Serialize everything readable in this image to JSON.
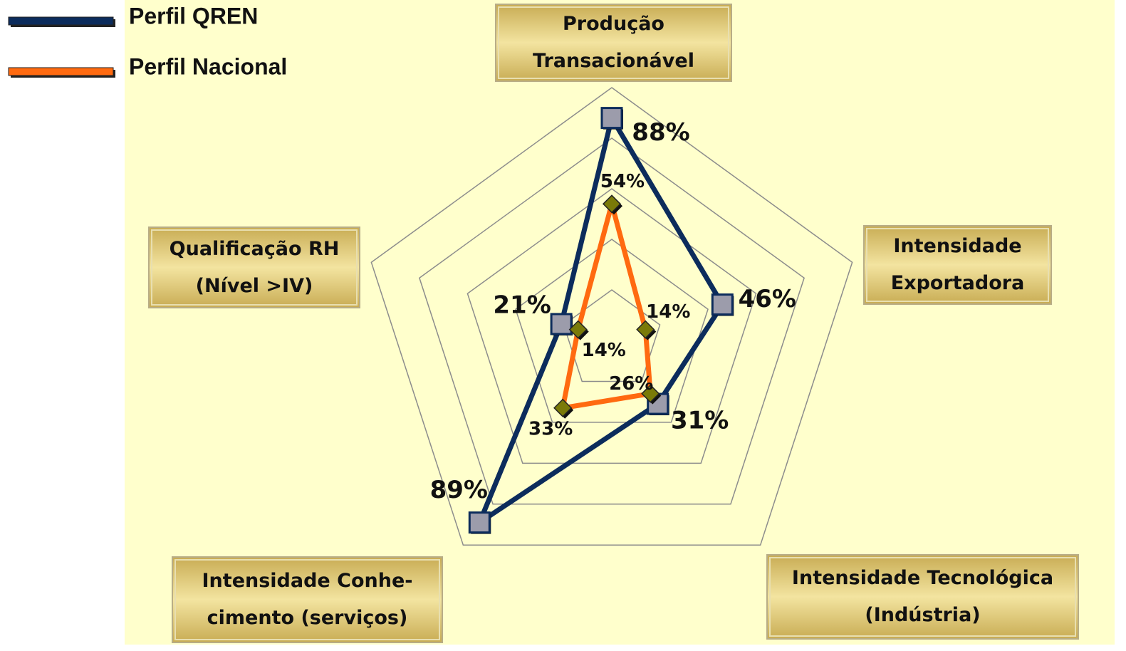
{
  "chart_data": {
    "type": "radar",
    "categories": [
      "Produção\nTransacionável",
      "Intensidade\nExportadora",
      "Intensidade Tecnológica\n(Indústria)",
      "Intensidade Conhe-\ncimento (serviços)",
      "Qualificação RH\n(Nível >IV)"
    ],
    "series": [
      {
        "name": "Perfil QREN",
        "color": "#0c2c5c",
        "values": [
          88,
          46,
          31,
          89,
          21
        ],
        "value_labels": [
          "88%",
          "46%",
          "31%",
          "89%",
          "21%"
        ]
      },
      {
        "name": "Perfil Nacional",
        "color": "#ff6a10",
        "values": [
          54,
          14,
          26,
          33,
          14
        ],
        "value_labels": [
          "54%",
          "14%",
          "26%",
          "33%",
          "14%"
        ]
      }
    ],
    "ylim": [
      0,
      100
    ],
    "yticks": [
      20,
      40,
      60,
      80,
      100
    ],
    "grid": true,
    "legend": "top-left"
  }
}
